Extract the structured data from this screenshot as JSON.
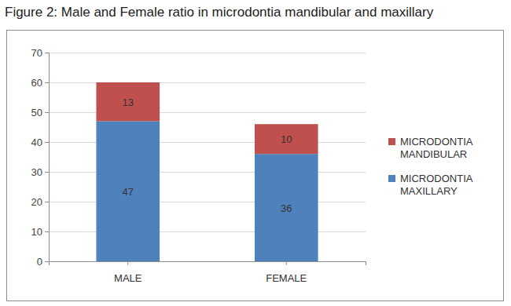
{
  "chart_data": {
    "type": "bar",
    "stacked": true,
    "title": "Figure 2: Male and Female ratio in microdontia mandibular and maxillary",
    "categories": [
      "MALE",
      "FEMALE"
    ],
    "series": [
      {
        "name": "MICRODONTIA MAXILLARY",
        "color": "#4f81bd",
        "values": [
          47,
          36
        ]
      },
      {
        "name": "MICRODONTIA MANDIBULAR",
        "color": "#c0504d",
        "values": [
          13,
          10
        ]
      }
    ],
    "ylim": [
      0,
      70
    ],
    "yticks": [
      0,
      10,
      20,
      30,
      40,
      50,
      60,
      70
    ],
    "grid": true,
    "legend": "right",
    "data_labels": true
  }
}
